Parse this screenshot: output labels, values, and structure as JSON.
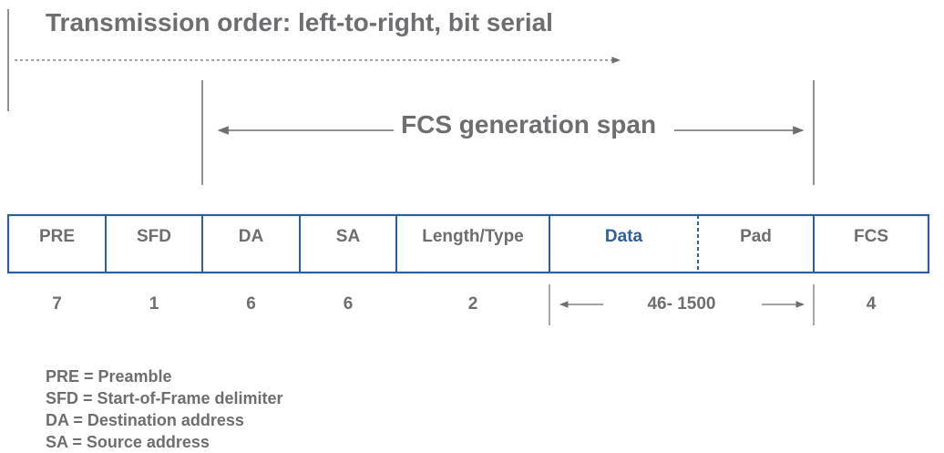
{
  "title": "Transmission order: left-to-right, bit serial",
  "fcs_span_label": "FCS generation span",
  "fields": [
    {
      "name": "PRE",
      "size": "7"
    },
    {
      "name": "SFD",
      "size": "1"
    },
    {
      "name": "DA",
      "size": "6"
    },
    {
      "name": "SA",
      "size": "6"
    },
    {
      "name": "Length/Type",
      "size": "2"
    },
    {
      "name": "Data",
      "size": ""
    },
    {
      "name": "Pad",
      "size": ""
    },
    {
      "name": "FCS",
      "size": "4"
    }
  ],
  "data_pad_size": "46- 1500",
  "legend": [
    "PRE = Preamble",
    "SFD = Start-of-Frame delimiter",
    "DA = Destination address",
    "SA = Source address"
  ],
  "colors": {
    "text": "#6d6e71",
    "box_border": "#2f5f9a",
    "accent_text": "#2f5f9a"
  }
}
